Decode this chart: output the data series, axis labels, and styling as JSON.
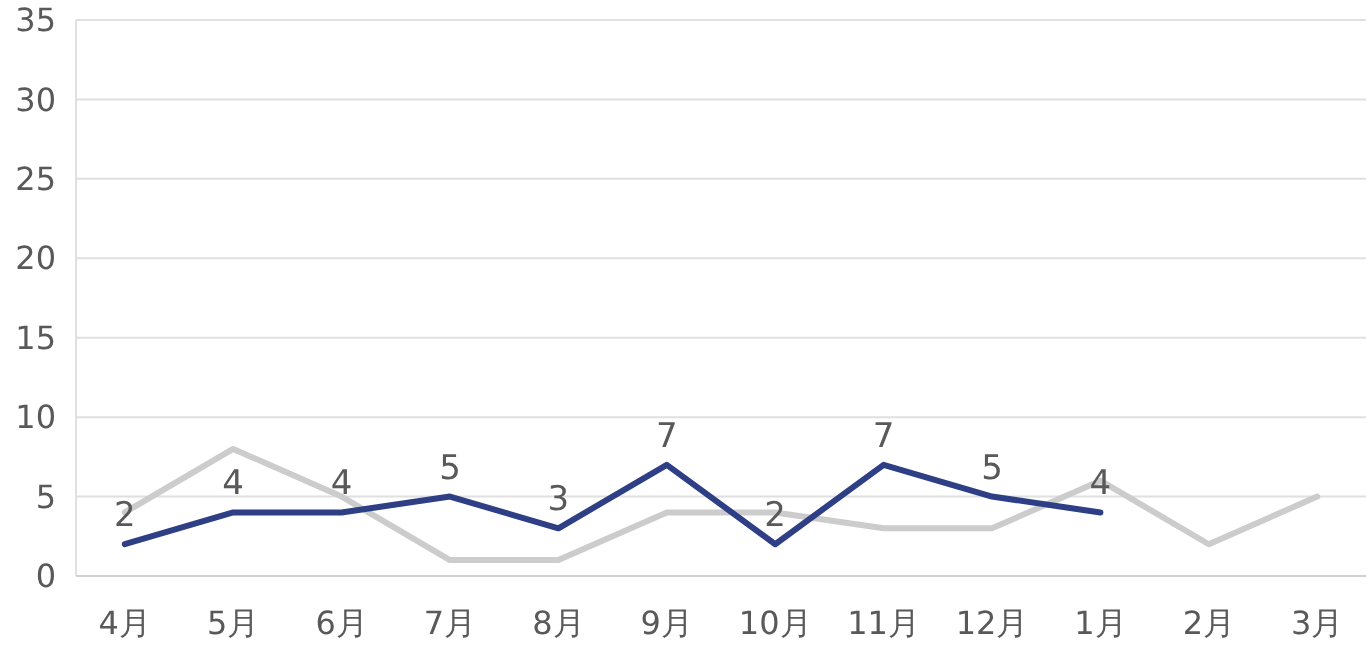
{
  "chart_data": {
    "type": "line",
    "categories": [
      "4月",
      "5月",
      "6月",
      "7月",
      "8月",
      "9月",
      "10月",
      "11月",
      "12月",
      "1月",
      "2月",
      "3月"
    ],
    "series": [
      {
        "color": "#cccccc",
        "values": [
          4,
          8,
          5,
          1,
          1,
          4,
          4,
          3,
          3,
          6,
          2,
          5
        ]
      },
      {
        "color": "#2e3f86",
        "values": [
          2,
          4,
          4,
          5,
          3,
          7,
          2,
          7,
          5,
          4,
          null,
          null
        ],
        "value_labels": [
          "2",
          "4",
          "4",
          "5",
          "3",
          "7",
          "2",
          "7",
          "5",
          "4",
          null,
          null
        ]
      }
    ],
    "ylim": [
      0,
      35
    ],
    "yticks": [
      0,
      5,
      10,
      15,
      20,
      25,
      30,
      35
    ],
    "grid": "y",
    "marker": "none",
    "line_style": "solid"
  }
}
